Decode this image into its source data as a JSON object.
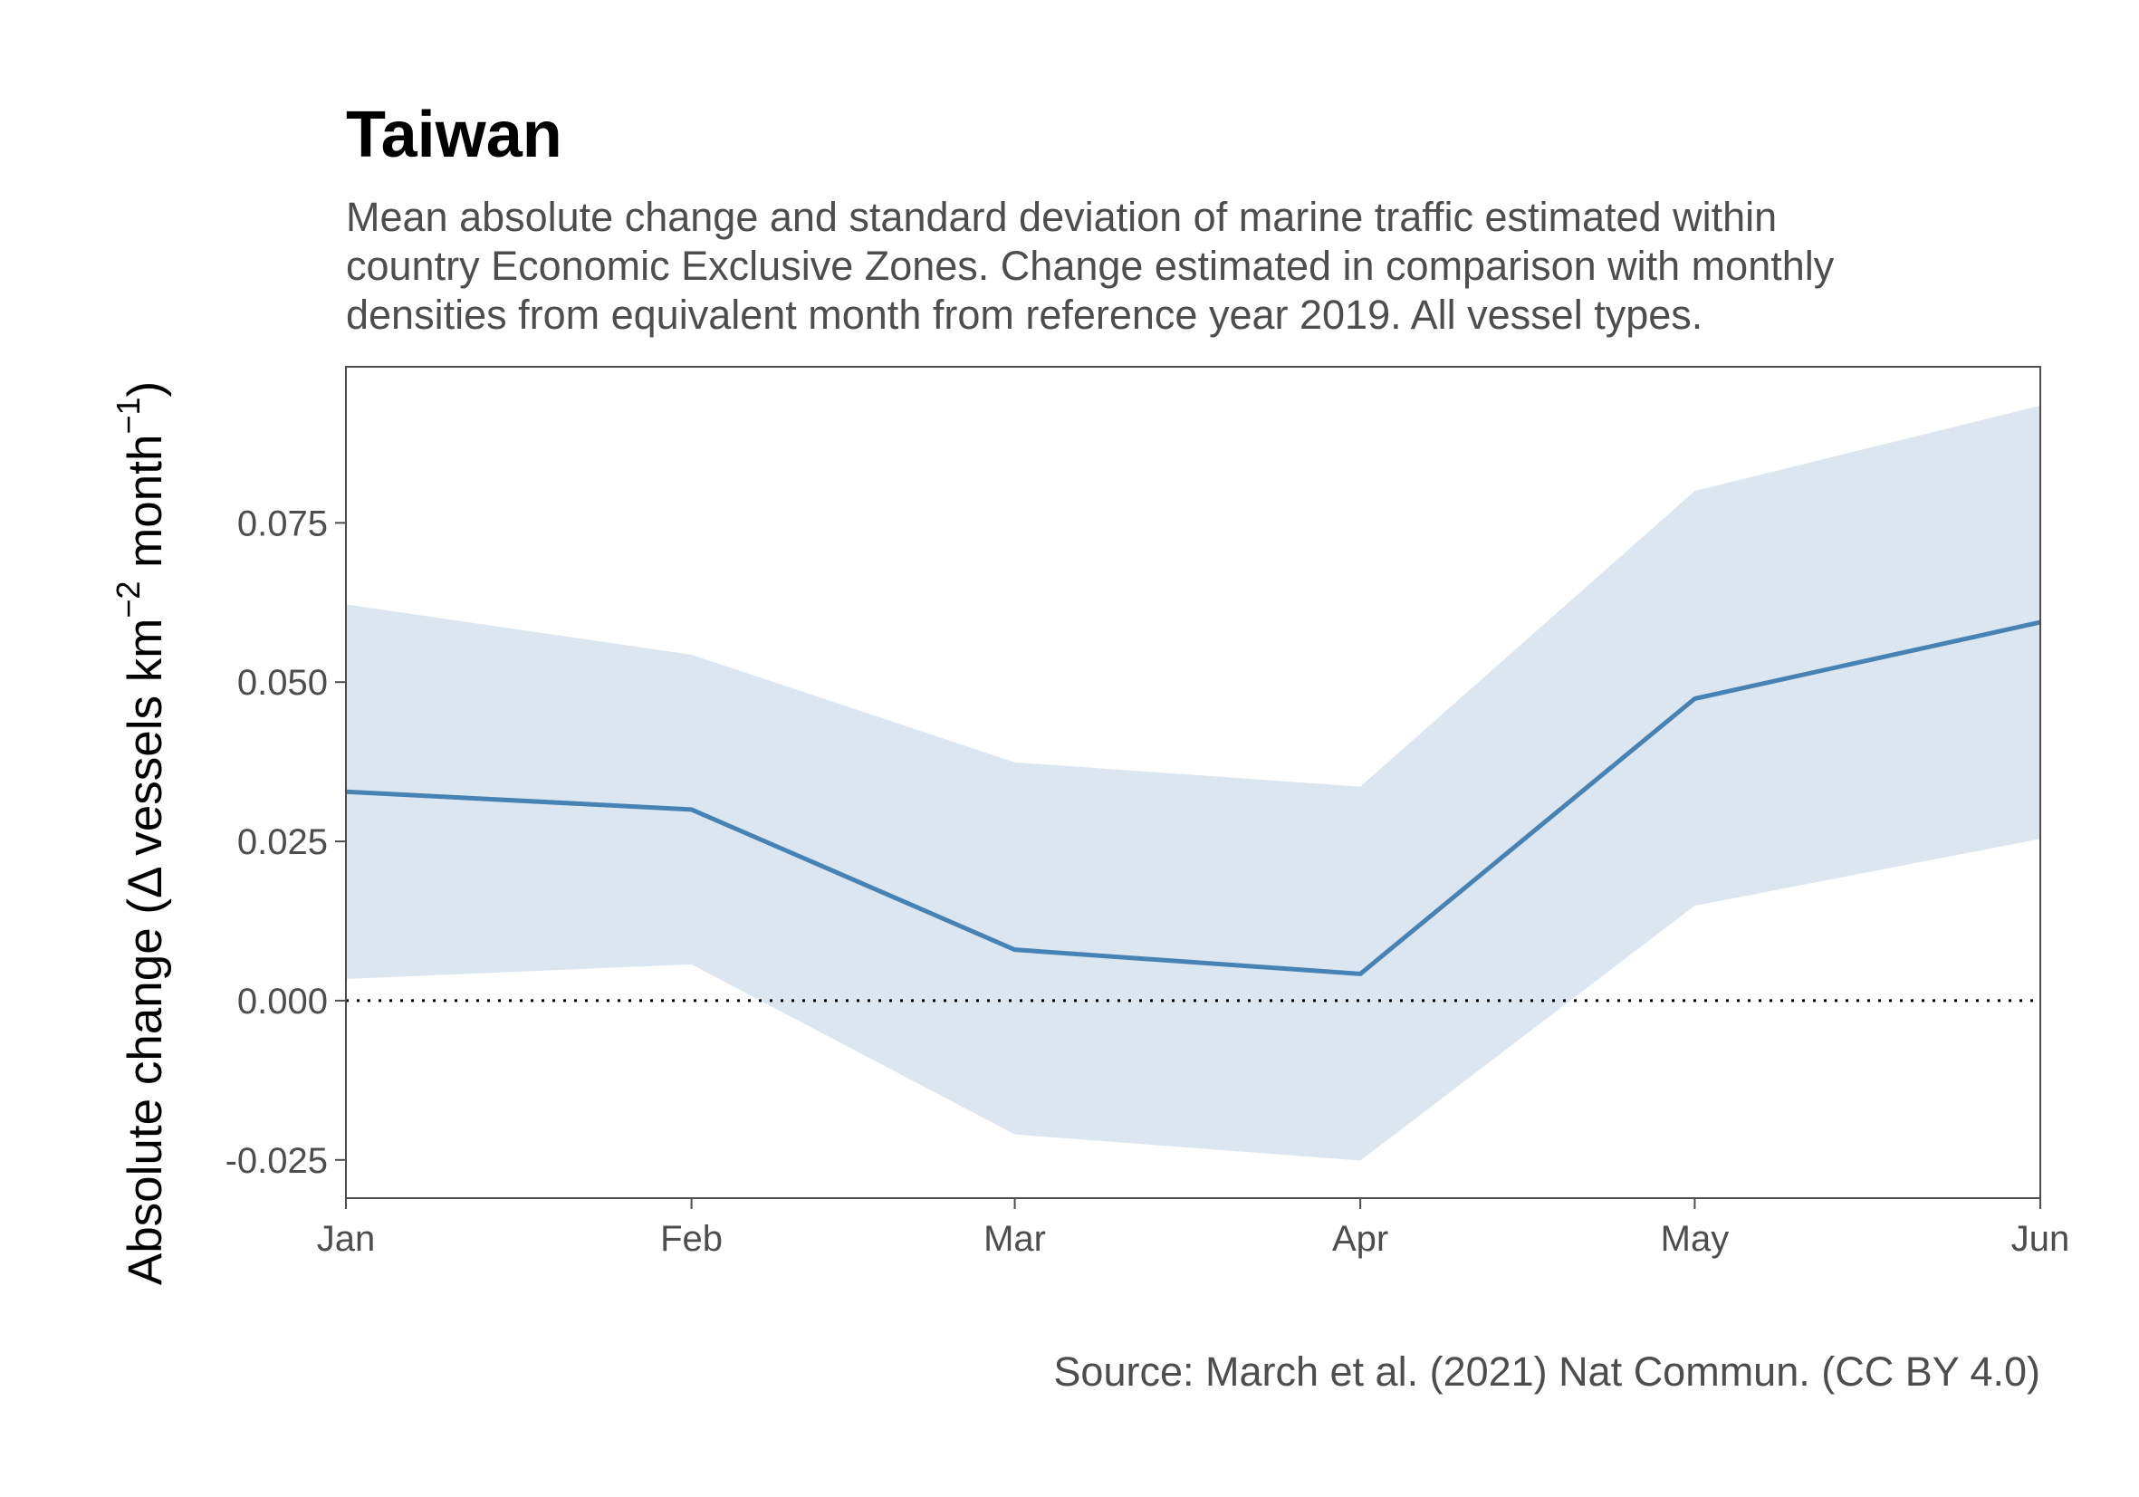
{
  "chart_data": {
    "type": "line",
    "title": "Taiwan",
    "subtitle": [
      "Mean absolute change and standard deviation of marine traffic estimated within",
      "country Economic Exclusive Zones. Change estimated in comparison with monthly",
      "densities from equivalent month from reference year 2019. All vessel types."
    ],
    "xlabel": "",
    "ylabel": {
      "main": "Absolute change (Δ vessels km",
      "exp1": "−2",
      "mid": " month",
      "exp2": "−1",
      "end": ")"
    },
    "caption": "Source: March et al. (2021) Nat Commun. (CC BY 4.0)",
    "categories": [
      "Jan",
      "Feb",
      "Mar",
      "Apr",
      "May",
      "Jun"
    ],
    "x_days": [
      0,
      31,
      60,
      91,
      121,
      152
    ],
    "series": [
      {
        "mean": [
          0.0328,
          0.03,
          0.008,
          0.0042,
          0.0474,
          0.0594
        ],
        "upper": [
          0.0622,
          0.0543,
          0.0374,
          0.0336,
          0.08,
          0.0934
        ],
        "lower": [
          0.0034,
          0.0057,
          -0.021,
          -0.0251,
          0.0149,
          0.0254
        ]
      }
    ],
    "ylim": [
      -0.031,
      0.0995
    ],
    "yticks": [
      -0.025,
      0.0,
      0.025,
      0.05,
      0.075
    ],
    "ytick_labels": [
      "-0.025",
      "0.000",
      "0.025",
      "0.050",
      "0.075"
    ],
    "reference_line": 0,
    "grid": false,
    "colors": {
      "line": "#4682b4",
      "ribbon": "#dce6f0",
      "axis": "#4d4d4d",
      "reference": "#000000"
    }
  }
}
